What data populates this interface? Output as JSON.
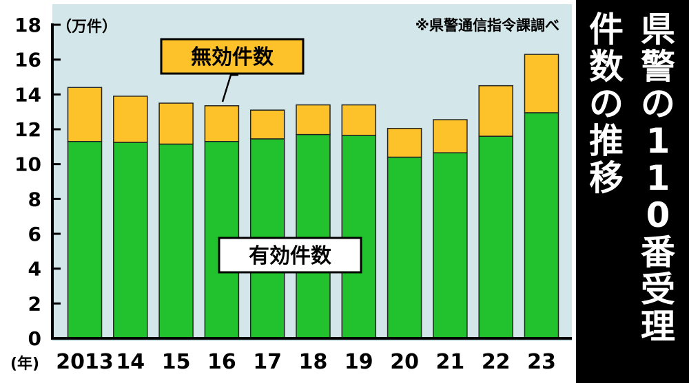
{
  "chart_data": {
    "type": "bar",
    "stacked": true,
    "title_lines": [
      "県警の110番受理",
      "件数の推移"
    ],
    "source": "※県警通信指令課調べ",
    "y_unit": "（万件）",
    "x_unit": "(年)",
    "categories": [
      "2013",
      "14",
      "15",
      "16",
      "17",
      "18",
      "19",
      "20",
      "21",
      "22",
      "23"
    ],
    "series": [
      {
        "name": "有効件数",
        "color": "#22c22e",
        "values": [
          11.3,
          11.25,
          11.15,
          11.3,
          11.45,
          11.7,
          11.65,
          10.4,
          10.65,
          11.6,
          12.95
        ]
      },
      {
        "name": "無効件数",
        "color": "#fdc22a",
        "values": [
          3.1,
          2.65,
          2.35,
          2.05,
          1.65,
          1.7,
          1.75,
          1.65,
          1.9,
          2.9,
          3.35
        ]
      }
    ],
    "ylim": [
      0,
      18
    ],
    "yticks": [
      0,
      2,
      4,
      6,
      8,
      10,
      12,
      14,
      16,
      18
    ],
    "grid": false,
    "plot_background": "#d3e7ea",
    "title_background": "#000000",
    "legend": {
      "type": "in-chart labels",
      "invalid_placement": "top-left with pointer",
      "valid_placement": "center-left"
    }
  }
}
